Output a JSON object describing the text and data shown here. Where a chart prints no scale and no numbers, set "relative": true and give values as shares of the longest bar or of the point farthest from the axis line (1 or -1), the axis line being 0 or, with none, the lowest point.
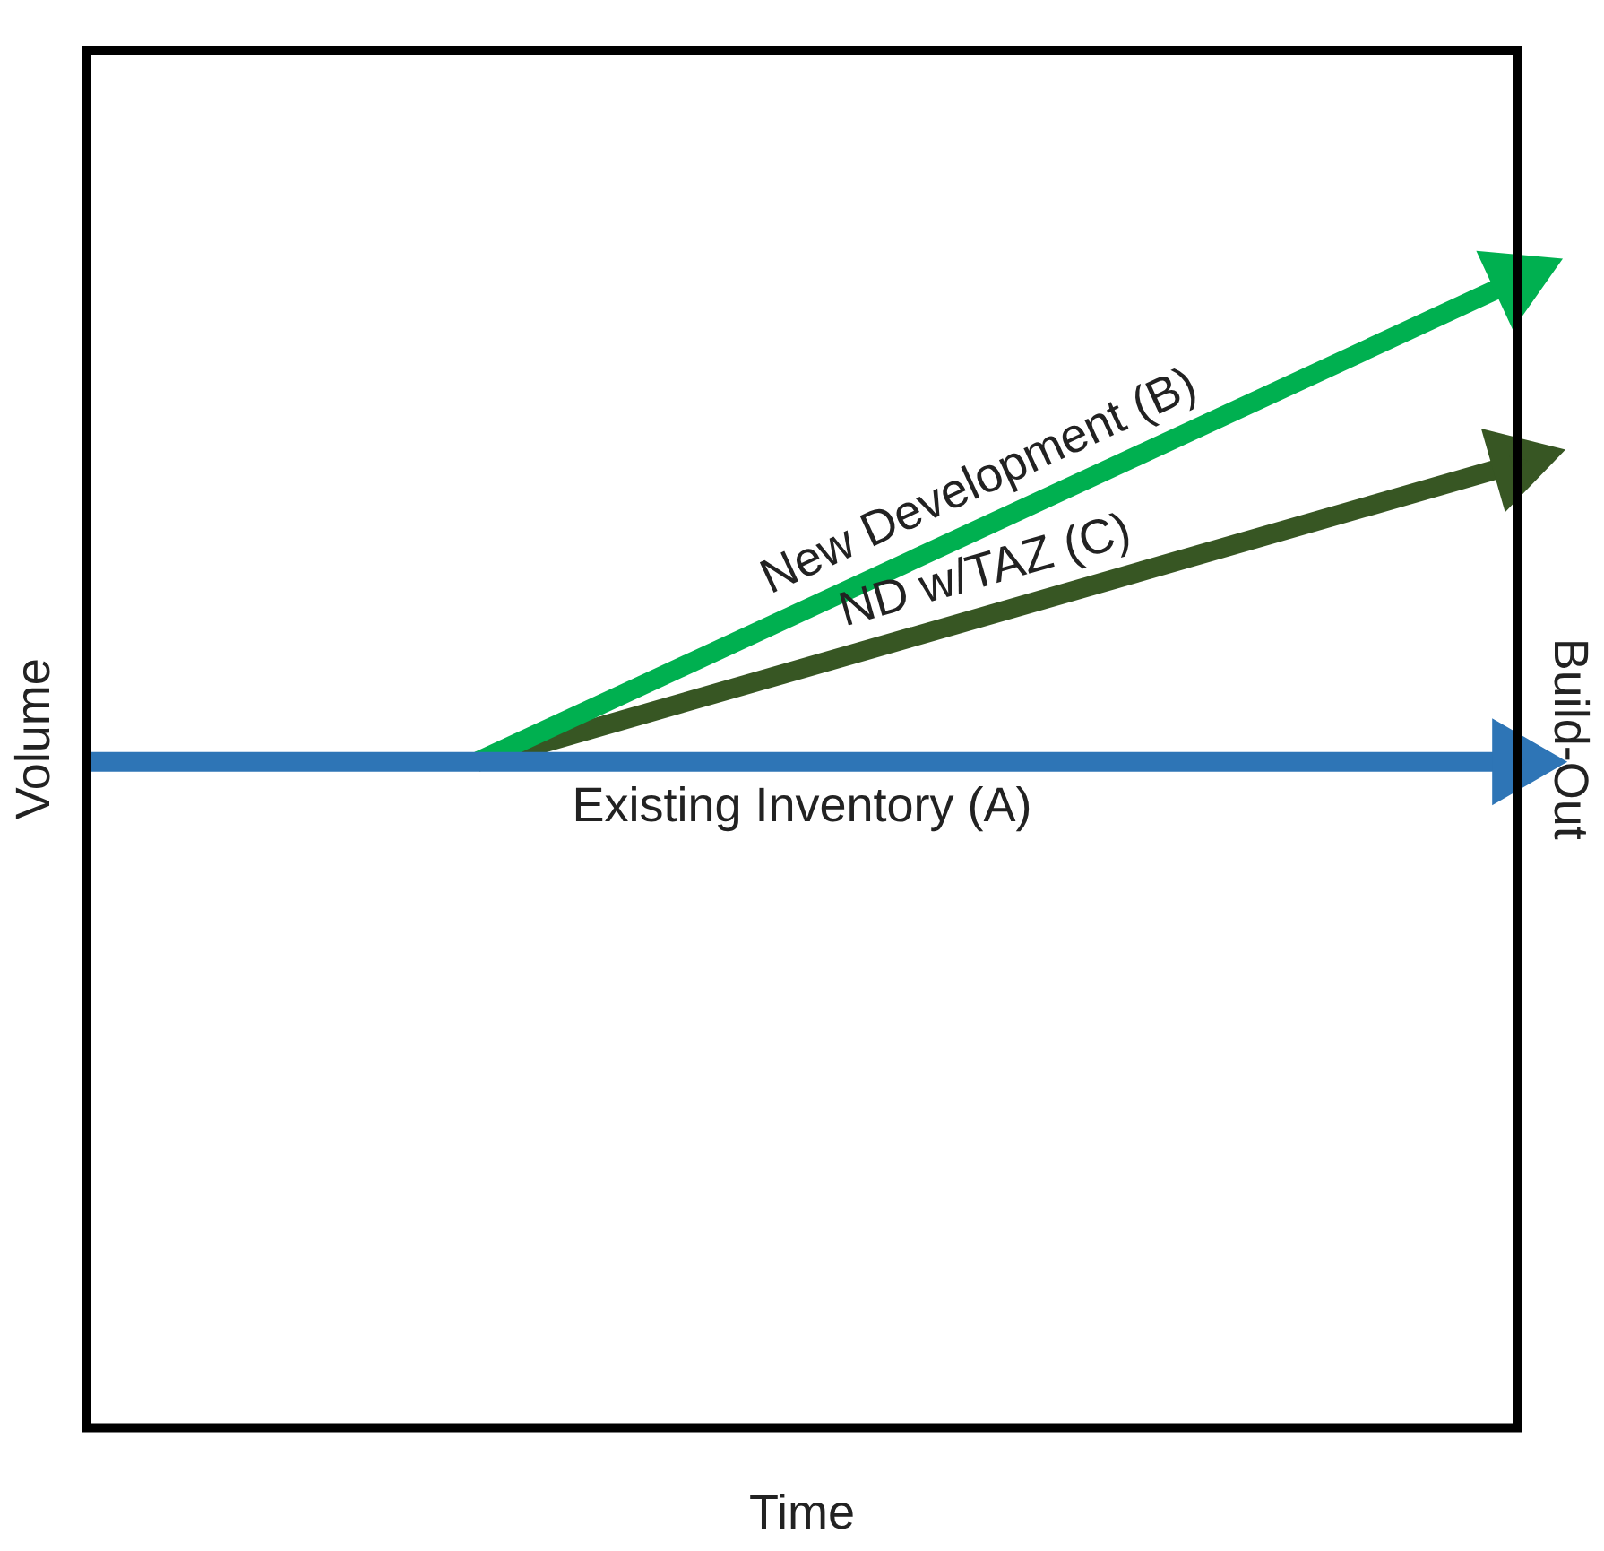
{
  "chart_data": {
    "type": "line",
    "relative": true,
    "xlabel": "Time",
    "ylabel": "Volume",
    "y2label": "Build-Out",
    "categories": [
      null,
      null,
      null,
      null,
      null,
      null,
      null,
      null,
      null,
      null,
      null,
      null
    ],
    "series": [
      {
        "name": "Existing Inventory (A)",
        "color": "#2e75b6",
        "values": [
          0.58,
          null,
          null,
          null,
          null,
          null,
          null,
          null,
          null,
          null,
          null,
          0.58
        ]
      },
      {
        "name": "New Development (B)",
        "color": "#00b050",
        "values": [
          null,
          null,
          null,
          0.58,
          null,
          null,
          null,
          null,
          null,
          null,
          null,
          1
        ]
      },
      {
        "name": "ND w/TAZ (C)",
        "color": "#375623",
        "values": [
          null,
          null,
          null,
          0.58,
          null,
          null,
          null,
          null,
          null,
          null,
          null,
          0.84
        ]
      }
    ],
    "legend": false,
    "grid": false,
    "line_style": "solid"
  }
}
